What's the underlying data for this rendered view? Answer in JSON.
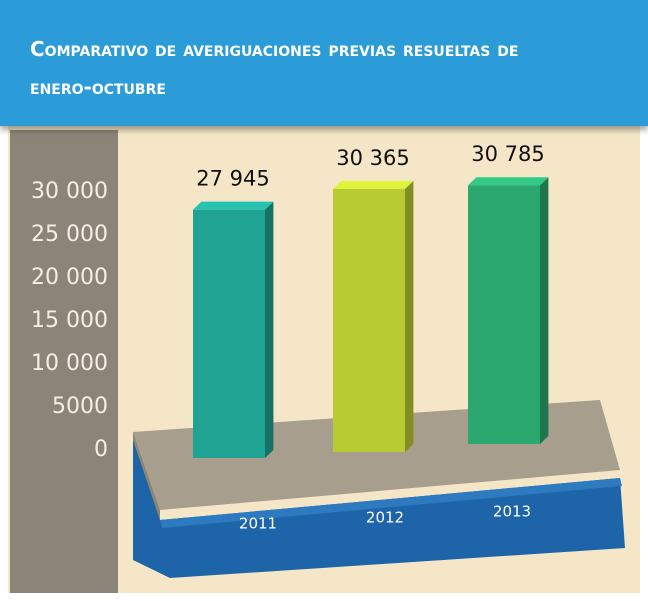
{
  "chart_data": {
    "type": "bar",
    "title": "Comparativo de averiguaciones previas resueltas de enero-octubre",
    "categories": [
      "2011",
      "2012",
      "2013"
    ],
    "values": [
      27945,
      30365,
      30785
    ],
    "value_labels": [
      "27 945",
      "30 365",
      "30 785"
    ],
    "colors": [
      "#1fa393",
      "#b9cb32",
      "#2aa870"
    ],
    "ylim": [
      0,
      30000
    ],
    "yticks": [
      0,
      5000,
      {
        "value": 10000,
        "label": "10 000"
      },
      {
        "value": 15000,
        "label": "15 000"
      },
      {
        "value": 20000,
        "label": "20 000"
      },
      {
        "value": 25000,
        "label": "25 000"
      },
      {
        "value": 30000,
        "label": "30 000"
      }
    ]
  }
}
